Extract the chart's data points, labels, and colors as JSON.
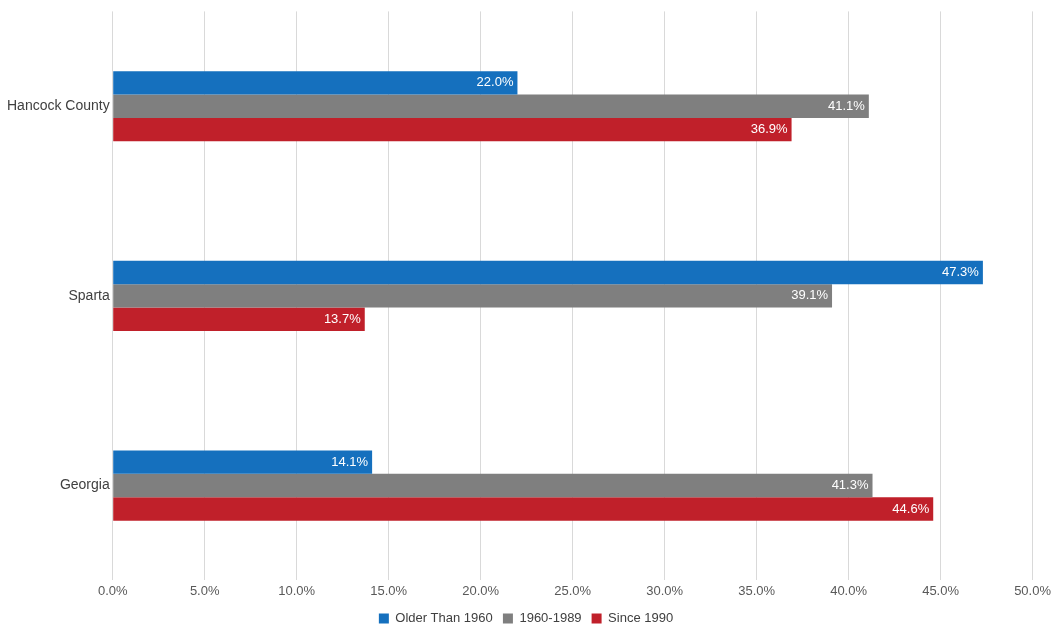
{
  "chart_data": {
    "type": "bar",
    "orientation": "horizontal",
    "categories": [
      "Hancock County",
      "Sparta",
      "Georgia"
    ],
    "series": [
      {
        "name": "Older Than 1960",
        "color": "#1570be",
        "values": [
          22.0,
          47.3,
          14.1
        ],
        "value_labels": [
          "22.0%",
          "47.3%",
          "14.1%"
        ]
      },
      {
        "name": "1960-1989",
        "color": "#7f7f7f",
        "values": [
          41.1,
          39.1,
          41.3
        ],
        "value_labels": [
          "41.1%",
          "39.1%",
          "41.3%"
        ]
      },
      {
        "name": "Since 1990",
        "color": "#c0202a",
        "values": [
          36.9,
          13.7,
          44.6
        ],
        "value_labels": [
          "36.9%",
          "13.7%",
          "44.6%"
        ]
      }
    ],
    "xlim": [
      0,
      50
    ],
    "xticks": [
      {
        "value": 0,
        "label": "0.0%"
      },
      {
        "value": 5,
        "label": "5.0%"
      },
      {
        "value": 10,
        "label": "10.0%"
      },
      {
        "value": 15,
        "label": "15.0%"
      },
      {
        "value": 20,
        "label": "20.0%"
      },
      {
        "value": 25,
        "label": "25.0%"
      },
      {
        "value": 30,
        "label": "30.0%"
      },
      {
        "value": 35,
        "label": "35.0%"
      },
      {
        "value": 40,
        "label": "40.0%"
      },
      {
        "value": 45,
        "label": "45.0%"
      },
      {
        "value": 50,
        "label": "50.0%"
      }
    ],
    "grid": "x",
    "legend": "bottom"
  }
}
